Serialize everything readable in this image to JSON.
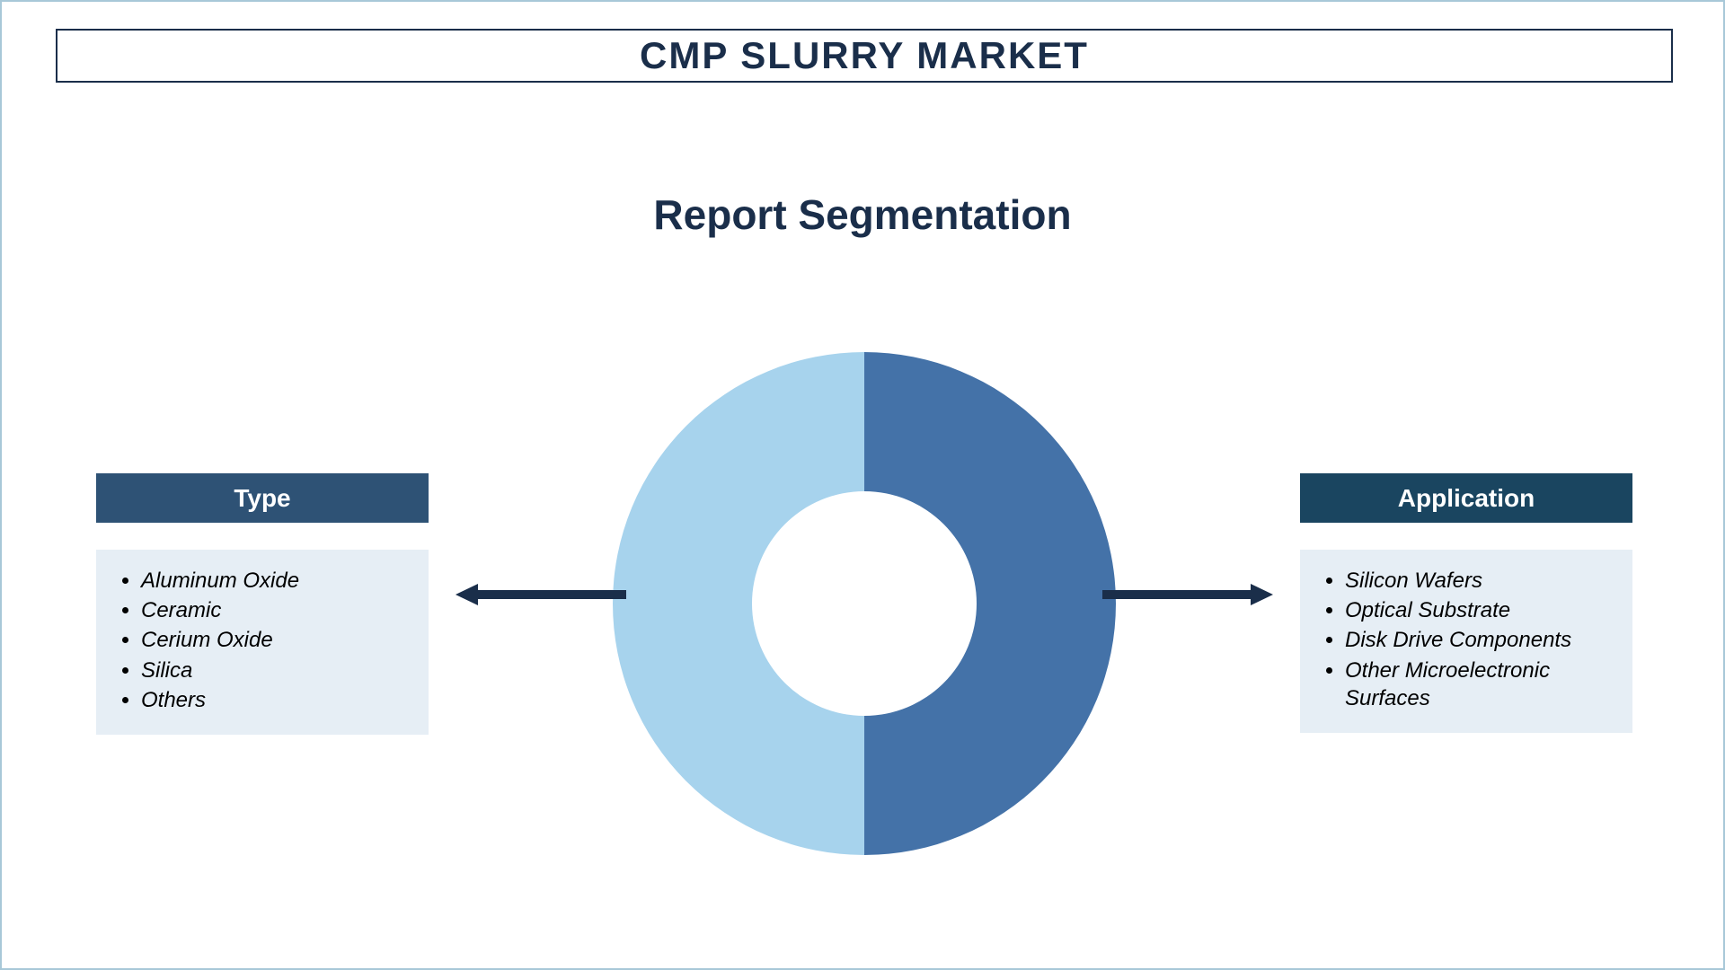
{
  "title": "CMP SLURRY MARKET",
  "subtitle": "Report Segmentation",
  "colors": {
    "title_text": "#1a2e4a",
    "title_border": "#1a2e4a",
    "page_border": "#a8c8d8",
    "header_left_bg": "#2e5275",
    "header_right_bg": "#1a4560",
    "header_text": "#ffffff",
    "list_bg": "#e6eef5",
    "list_text": "#000000",
    "arrow": "#1a2e4a",
    "donut_left": "#a7d3ed",
    "donut_right": "#4472a8",
    "donut_inner": "#ffffff"
  },
  "donut": {
    "outer_radius": 280,
    "inner_radius": 125,
    "segments": [
      {
        "start_angle": 180,
        "end_angle": 360,
        "color": "#a7d3ed"
      },
      {
        "start_angle": 0,
        "end_angle": 180,
        "color": "#4472a8"
      }
    ]
  },
  "segments": {
    "left": {
      "header": "Type",
      "items": [
        "Aluminum Oxide",
        "Ceramic",
        "Cerium Oxide",
        "Silica",
        "Others"
      ]
    },
    "right": {
      "header": "Application",
      "items": [
        "Silicon Wafers",
        "Optical Substrate",
        "Disk Drive Components",
        "Other Microelectronic Surfaces"
      ]
    }
  },
  "typography": {
    "title_fontsize": 42,
    "subtitle_fontsize": 46,
    "header_fontsize": 28,
    "list_fontsize": 24
  }
}
